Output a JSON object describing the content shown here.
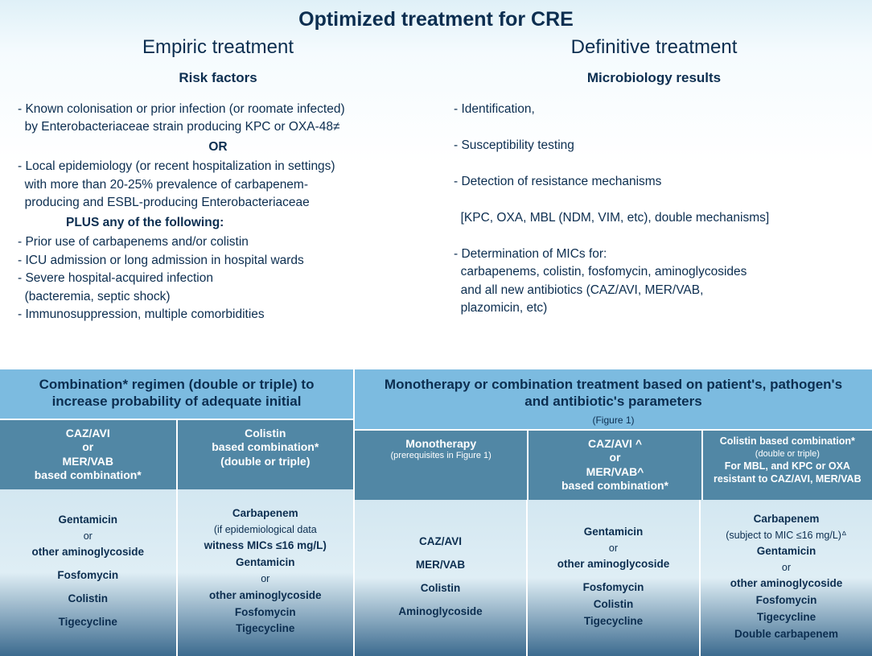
{
  "title": "Optimized treatment for CRE",
  "empiric": {
    "heading": "Empiric treatment",
    "subtitle": "Risk factors",
    "lines": [
      "- Known colonisation or prior infection (or roomate infected)",
      "  by Enterobacteriaceae strain producing KPC or OXA-48≠",
      "OR",
      "- Local epidemiology (or recent hospitalization in settings)",
      "  with more than 20-25% prevalence of carbapenem-",
      "  producing and ESBL-producing Enterobacteriaceae",
      "PLUS any of the following:",
      "- Prior use of carbapenems and/or colistin",
      "- ICU admission or long admission in hospital wards",
      "- Severe hospital-acquired infection",
      "  (bacteremia, septic shock)",
      "- Immunosuppression, multiple comorbidities"
    ]
  },
  "definitive": {
    "heading": "Definitive treatment",
    "subtitle": "Microbiology results",
    "lines": [
      "- Identification,",
      "",
      "- Susceptibility testing",
      "",
      "- Detection of resistance mechanisms",
      "",
      "  [KPC, OXA, MBL (NDM, VIM, etc), double mechanisms]",
      "",
      "- Determination of MICs for:",
      "  carbapenems, colistin, fosfomycin, aminoglycosides",
      "  and all new antibiotics (CAZ/AVI, MER/VAB,",
      "  plazomicin, etc)"
    ]
  },
  "leftHeader": "Combination* regimen (double or triple) to increase probability of adequate initial",
  "rightHeader": "Monotherapy or combination treatment based on patient's, pathogen's and antibiotic's parameters",
  "rightHeaderNote": "(Figure 1)",
  "subHeaders": {
    "a": {
      "l1": "CAZ/AVI",
      "l2": "or",
      "l3": "MER/VAB",
      "l4": "based combination*"
    },
    "b": {
      "l1": "Colistin",
      "l2": "based combination*",
      "l3": "(double or triple)"
    },
    "c": {
      "l1": "Monotherapy",
      "note": "(prerequisites in Figure 1)"
    },
    "d": {
      "l1": "CAZ/AVI ^",
      "l2": "or",
      "l3": "MER/VAB^",
      "l4": "based combination*"
    },
    "e": {
      "l1": "Colistin based",
      "l2": "combination*",
      "note": "(double or triple)",
      "l3": "For MBL, and KPC or OXA",
      "l4": "resistant to CAZ/AVI, MER/VAB"
    }
  },
  "options": {
    "a": [
      "Gentamicin",
      "or",
      "other aminoglycoside",
      "",
      "Fosfomycin",
      "",
      "Colistin",
      "",
      "Tigecycline"
    ],
    "b": [
      "Carbapenem",
      "(if epidemiological data",
      "witness MICs ≤16 mg/L)",
      "Gentamicin",
      "or",
      "other aminoglycoside",
      "Fosfomycin",
      "Tigecycline"
    ],
    "c": [
      "CAZ/AVI",
      "",
      "MER/VAB",
      "",
      "Colistin",
      "",
      "Aminoglycoside"
    ],
    "d": [
      "Gentamicin",
      "or",
      "other aminoglycoside",
      "",
      "Fosfomycin",
      "Colistin",
      "Tigecycline"
    ],
    "e": [
      "Carbapenem",
      "(subject to MIC ≤16 mg/L)ᐞ",
      "Gentamicin",
      "or",
      "other aminoglycoside",
      "Fosfomycin",
      "Tigecycline",
      "Double carbapenem"
    ]
  },
  "colors": {
    "textPrimary": "#0c2e50",
    "headerBg": "#7cbbe0",
    "subHeaderBg": "#5187a5",
    "subHeaderText": "#ffffff",
    "cellGradTop": "#d3e7f1",
    "cellGradBottom": "#3c6b8f"
  }
}
